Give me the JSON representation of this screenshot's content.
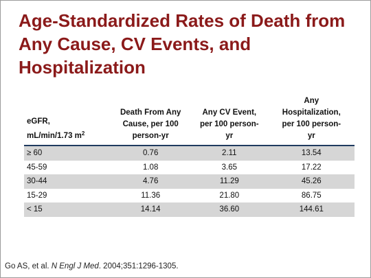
{
  "title": {
    "lines": [
      "Age-Standardized Rates of Death from",
      "Any Cause, CV Events, and",
      "Hospitalization"
    ]
  },
  "table": {
    "headers": [
      {
        "lines": [
          "eGFR,",
          "mL/min/1.73 m"
        ],
        "superscript": "2"
      },
      {
        "lines": [
          "Death From Any",
          "Cause, per 100",
          "person-yr"
        ]
      },
      {
        "lines": [
          "Any CV Event,",
          "per 100 person-",
          "yr"
        ]
      },
      {
        "lines": [
          "Any",
          "Hospitalization,",
          "per 100 person-",
          "yr"
        ]
      }
    ],
    "rows": [
      [
        "≥ 60",
        "0.76",
        "2.11",
        "13.54"
      ],
      [
        "45-59",
        "1.08",
        "3.65",
        "17.22"
      ],
      [
        "30-44",
        "4.76",
        "11.29",
        "45.26"
      ],
      [
        "15-29",
        "11.36",
        "21.80",
        "86.75"
      ],
      [
        "< 15",
        "14.14",
        "36.60",
        "144.61"
      ]
    ]
  },
  "footer": {
    "authors": "Go AS, et al. ",
    "journal": "N Engl J Med",
    "details": ". 2004;351:1296-1305."
  },
  "colors": {
    "title": "#8b1a1a",
    "header_rule": "#1f3a5f",
    "row_shade": "#d6d6d6"
  }
}
